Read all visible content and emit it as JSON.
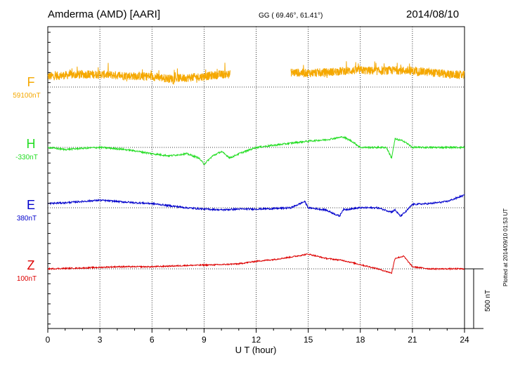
{
  "header": {
    "station": "Amderma (AMD)  [AARI]",
    "coords": "GG ( 69.46°,  61.41°)",
    "date": "2014/08/10"
  },
  "footer": {
    "plotted": "Plotted at 2014/09/10 01:53 UT",
    "scale_label": "500 nT"
  },
  "colors": {
    "F": "#f5a800",
    "H": "#22dd22",
    "E": "#0000cc",
    "Z": "#dd0000"
  },
  "chart_data": {
    "type": "line",
    "title": "Amderma (AMD)  [AARI]",
    "xlabel": "U T (hour)",
    "ylabel": "",
    "xlim": [
      0,
      24
    ],
    "x_ticks": [
      0,
      3,
      6,
      9,
      12,
      15,
      18,
      21,
      24
    ],
    "x_tick_labels": [
      "0",
      "3",
      "6",
      "9",
      "12",
      "15",
      "18",
      "21",
      "24"
    ],
    "grid": true,
    "scale_bar_nT": 500,
    "series": [
      {
        "name": "F",
        "baseline_label": "59100nT",
        "color": "#f5a800",
        "noise": 10,
        "gap": [
          10.5,
          14.0
        ],
        "x": [
          0,
          1,
          2,
          3,
          4,
          5,
          6,
          7,
          8,
          9,
          10,
          10.5,
          14,
          15,
          16,
          17,
          18,
          19,
          20,
          21,
          22,
          23,
          24
        ],
        "values": [
          25,
          28,
          30,
          30,
          28,
          26,
          25,
          20,
          22,
          25,
          30,
          30,
          35,
          33,
          35,
          38,
          40,
          38,
          40,
          38,
          35,
          30,
          28
        ]
      },
      {
        "name": "H",
        "baseline_label": "-330nT",
        "color": "#22dd22",
        "noise": 2,
        "x": [
          0,
          1,
          2,
          3,
          4,
          5,
          6,
          7,
          8,
          8.7,
          9,
          9.5,
          10,
          10.5,
          11,
          12,
          13,
          14,
          15,
          16,
          17,
          17.5,
          18,
          19,
          19.5,
          19.8,
          20,
          20.5,
          21,
          22,
          23,
          24
        ],
        "values": [
          0,
          -5,
          -2,
          0,
          -3,
          -8,
          -15,
          -20,
          -15,
          -25,
          -40,
          -20,
          -10,
          -25,
          -15,
          0,
          5,
          10,
          15,
          18,
          25,
          15,
          0,
          0,
          0,
          -25,
          20,
          15,
          0,
          0,
          0,
          0
        ]
      },
      {
        "name": "E",
        "baseline_label": "380nT",
        "color": "#0000cc",
        "noise": 2,
        "x": [
          0,
          1,
          2,
          3,
          4,
          5,
          6,
          7,
          8,
          9,
          10,
          11,
          12,
          13,
          14,
          14.8,
          15,
          16,
          16.8,
          17,
          18,
          19,
          19.8,
          20,
          20.3,
          20.6,
          21,
          22,
          23,
          24
        ],
        "values": [
          10,
          12,
          15,
          18,
          15,
          12,
          10,
          5,
          0,
          -3,
          -5,
          -3,
          -3,
          -2,
          0,
          15,
          0,
          -5,
          -20,
          -5,
          0,
          0,
          -10,
          -5,
          -20,
          -10,
          8,
          10,
          15,
          30
        ]
      },
      {
        "name": "Z",
        "baseline_label": "100nT",
        "color": "#dd0000",
        "noise": 1.5,
        "x": [
          0,
          2,
          4,
          6,
          8,
          10,
          11,
          12,
          13,
          14,
          15,
          16,
          17,
          18,
          19,
          19.8,
          20,
          20.5,
          21,
          22,
          23,
          24
        ],
        "values": [
          0,
          2,
          5,
          5,
          8,
          10,
          12,
          18,
          22,
          28,
          35,
          25,
          20,
          10,
          0,
          -10,
          25,
          30,
          5,
          0,
          0,
          0
        ]
      }
    ]
  }
}
